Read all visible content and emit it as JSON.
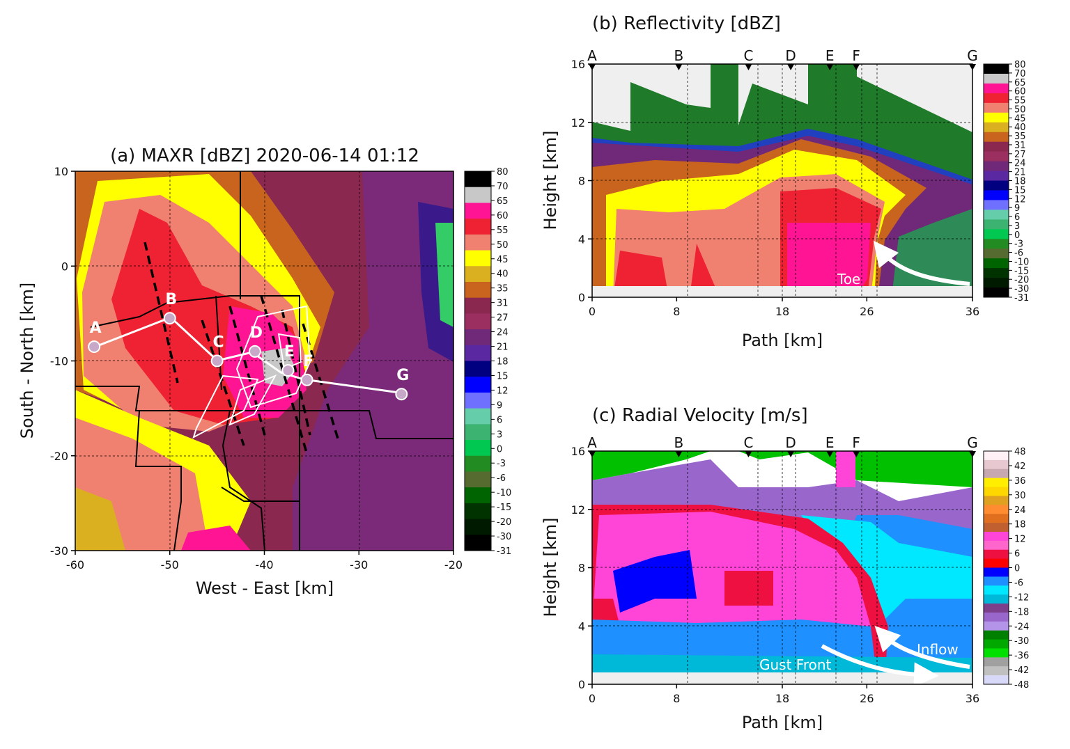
{
  "chart_data": [
    {
      "id": "a",
      "type": "heatmap",
      "title": "(a) MAXR [dBZ] 2020-06-14 01:12",
      "xlabel": "West - East [km]",
      "ylabel": "South - North [km]",
      "xlim": [
        -60,
        -20
      ],
      "ylim": [
        -30,
        10
      ],
      "xticks": [
        -60,
        -50,
        -40,
        -30,
        -20
      ],
      "yticks": [
        10,
        0,
        -10,
        -20,
        -30
      ],
      "grid": true,
      "colorbar": {
        "labels": [
          "80",
          "70",
          "65",
          "60",
          "55",
          "50",
          "45",
          "40",
          "35",
          "31",
          "27",
          "24",
          "21",
          "18",
          "15",
          "12",
          "9",
          "6",
          "3",
          "0",
          "-3",
          "-6",
          "-10",
          "-15",
          "-20",
          "-30",
          "-31"
        ],
        "colors": [
          "#000000",
          "#c8c8c8",
          "#ff1493",
          "#ee2233",
          "#f08070",
          "#ffff00",
          "#dab020",
          "#c8641e",
          "#8b2850",
          "#9b3060",
          "#702878",
          "#5a28a0",
          "#000080",
          "#0000ff",
          "#7070ff",
          "#66cdaa",
          "#3cb371",
          "#00c850",
          "#228b22",
          "#556b2f",
          "#006400",
          "#003300",
          "#001a00",
          "#000000"
        ]
      },
      "path_points": [
        {
          "label": "A",
          "x": -58,
          "y": -8.5
        },
        {
          "label": "B",
          "x": -50,
          "y": -5.5
        },
        {
          "label": "C",
          "x": -45,
          "y": -10
        },
        {
          "label": "D",
          "x": -41,
          "y": -9
        },
        {
          "label": "E",
          "x": -37.5,
          "y": -11
        },
        {
          "label": "F",
          "x": -35.5,
          "y": -12
        },
        {
          "label": "G",
          "x": -25.5,
          "y": -13.5
        }
      ]
    },
    {
      "id": "b",
      "type": "heatmap",
      "title": "(b) Reflectivity [dBZ]",
      "xlabel": "Path [km]",
      "ylabel": "Height [km]",
      "xlim": [
        0,
        36
      ],
      "ylim": [
        0,
        16
      ],
      "xticks": [
        0,
        8,
        18,
        26,
        36
      ],
      "yticks": [
        0,
        4,
        8,
        12,
        16
      ],
      "grid": true,
      "point_labels": [
        "A",
        "B",
        "C",
        "D",
        "E",
        "F",
        "G"
      ],
      "point_positions": [
        0,
        8.2,
        14.8,
        18.8,
        22.5,
        25,
        36
      ],
      "annotations": [
        "Toe"
      ],
      "colorbar": {
        "labels": [
          "80",
          "70",
          "65",
          "60",
          "55",
          "50",
          "45",
          "40",
          "35",
          "31",
          "27",
          "24",
          "21",
          "18",
          "15",
          "12",
          "9",
          "6",
          "3",
          "0",
          "-3",
          "-6",
          "-10",
          "-15",
          "-20",
          "-30",
          "-31"
        ],
        "colors": [
          "#000000",
          "#c8c8c8",
          "#ff1493",
          "#ee2233",
          "#f08070",
          "#ffff00",
          "#dab020",
          "#c8641e",
          "#8b2850",
          "#9b3060",
          "#702878",
          "#5a28a0",
          "#000080",
          "#0000ff",
          "#7070ff",
          "#66cdaa",
          "#3cb371",
          "#00c850",
          "#228b22",
          "#556b2f",
          "#006400",
          "#003300",
          "#001a00",
          "#000000"
        ]
      }
    },
    {
      "id": "c",
      "type": "heatmap",
      "title": "(c) Radial Velocity [m/s]",
      "xlabel": "Path [km]",
      "ylabel": "Height [km]",
      "xlim": [
        0,
        36
      ],
      "ylim": [
        0,
        16
      ],
      "xticks": [
        0,
        8,
        18,
        26,
        36
      ],
      "yticks": [
        0,
        4,
        8,
        12,
        16
      ],
      "grid": true,
      "point_labels": [
        "A",
        "B",
        "C",
        "D",
        "E",
        "F",
        "G"
      ],
      "point_positions": [
        0,
        8.2,
        14.8,
        18.8,
        22.5,
        25,
        36
      ],
      "annotations": [
        "Inflow",
        "Gust Front"
      ],
      "colorbar": {
        "labels": [
          "48",
          "42",
          "36",
          "30",
          "24",
          "18",
          "12",
          "6",
          "0",
          "-6",
          "-12",
          "-18",
          "-24",
          "-30",
          "-36",
          "-42",
          "-48"
        ],
        "colors": [
          "#fff0f5",
          "#e8c8d0",
          "#c8a8b0",
          "#ffee00",
          "#ffd700",
          "#e0a020",
          "#ff8c30",
          "#e07020",
          "#c06030",
          "#ff44d8",
          "#ff66cc",
          "#ee1040",
          "#ff0000",
          "#0000ff",
          "#1e90ff",
          "#00e8ff",
          "#00b8d8",
          "#7b3f8c",
          "#9966cc",
          "#b494e8",
          "#008000",
          "#00a800",
          "#00e000",
          "#a0a0a0",
          "#c0c0c0",
          "#d8d8f8"
        ]
      }
    }
  ]
}
